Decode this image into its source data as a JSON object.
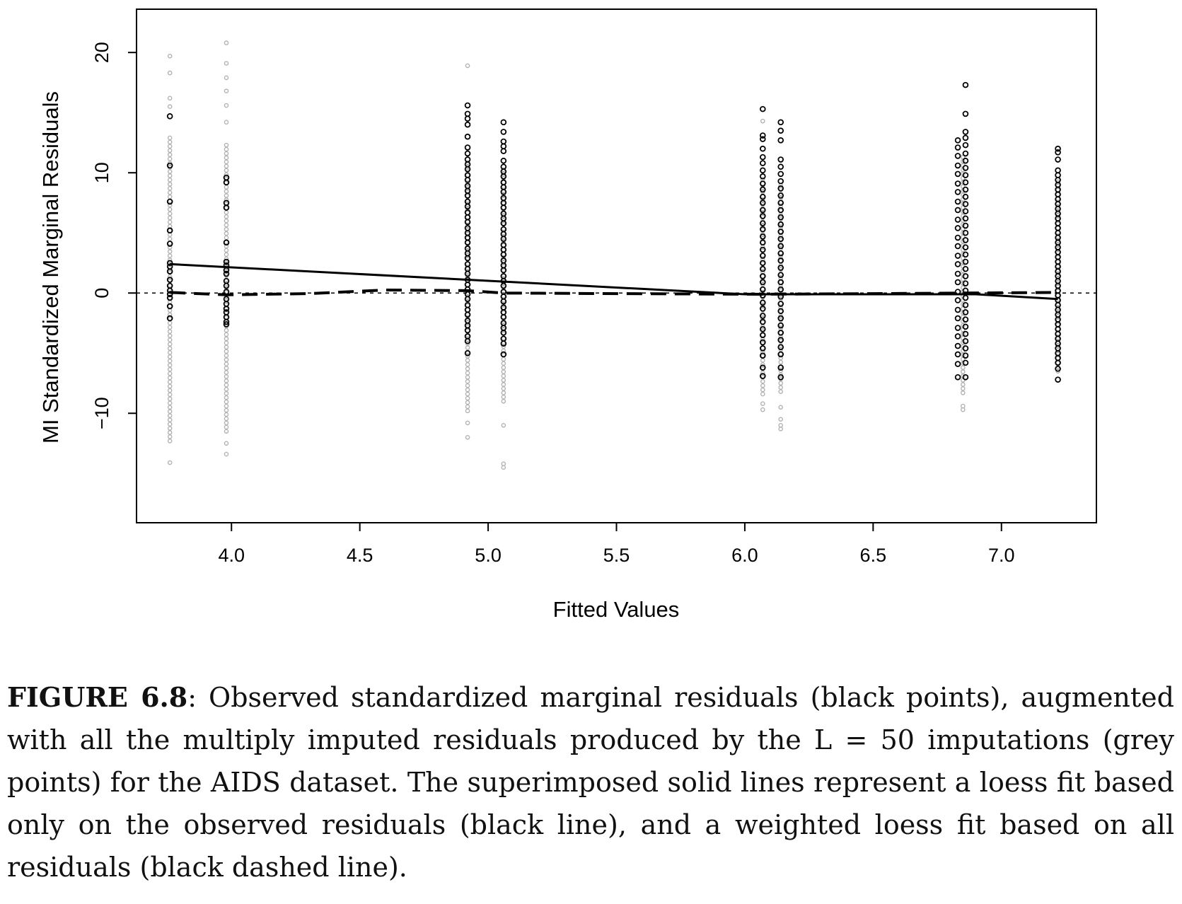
{
  "chart_data": {
    "type": "scatter",
    "xlabel": "Fitted Values",
    "ylabel": "MI Standardized Marginal Residuals",
    "xlim": [
      3.63,
      7.37
    ],
    "ylim": [
      -19.1,
      23.6
    ],
    "x_ticks": [
      "4.0",
      "4.5",
      "5.0",
      "5.5",
      "6.0",
      "6.5",
      "7.0"
    ],
    "x_tick_values": [
      4.0,
      4.5,
      5.0,
      5.5,
      6.0,
      6.5,
      7.0
    ],
    "y_ticks": [
      "−10",
      "0",
      "10",
      "20"
    ],
    "y_tick_values": [
      -10,
      0,
      10,
      20
    ],
    "reference_line": {
      "y": 0,
      "style": "dotted"
    },
    "observed_points": {
      "color": "#000000",
      "columns": [
        {
          "x": 3.76,
          "y": [
            14.7,
            10.6,
            7.6,
            5.2,
            4.1,
            2.5,
            2.2,
            1.8,
            1.1,
            0.6,
            0.2,
            -0.1,
            -0.4,
            -1.1,
            -2.1
          ]
        },
        {
          "x": 3.98,
          "y": [
            9.6,
            9.2,
            7.5,
            7.1,
            4.2,
            2.6,
            2.3,
            1.9,
            1.6,
            1.0,
            0.6,
            0.1,
            -0.5,
            -0.9,
            -1.3,
            -1.6,
            -2.0,
            -2.4,
            -2.6
          ]
        },
        {
          "x": 4.92,
          "y": [
            15.6,
            14.9,
            14.5,
            14.0,
            13.0,
            12.1,
            11.6,
            11.1,
            10.7,
            10.3,
            9.8,
            9.4,
            8.9,
            8.5,
            8.1,
            7.6,
            7.2,
            6.7,
            6.3,
            5.9,
            5.4,
            5.0,
            4.6,
            4.2,
            3.7,
            3.3,
            2.9,
            2.4,
            2.0,
            1.6,
            1.1,
            0.7,
            0.3,
            -0.1,
            -0.5,
            -1.0,
            -1.4,
            -1.8,
            -2.3,
            -2.7,
            -3.1,
            -3.6,
            -4.0,
            -5.0
          ]
        },
        {
          "x": 5.06,
          "y": [
            14.2,
            13.4,
            12.6,
            12.2,
            11.8,
            11.0,
            10.5,
            10.1,
            9.7,
            9.2,
            8.8,
            8.4,
            7.9,
            7.5,
            7.1,
            6.6,
            6.2,
            5.8,
            5.3,
            4.9,
            4.5,
            4.0,
            3.6,
            3.2,
            2.7,
            2.3,
            1.9,
            1.4,
            1.0,
            0.6,
            0.1,
            -0.3,
            -0.7,
            -1.2,
            -1.6,
            -2.0,
            -2.5,
            -2.9,
            -3.3,
            -3.8,
            -4.2,
            -5.1
          ]
        },
        {
          "x": 6.07,
          "y": [
            15.3,
            13.1,
            12.8,
            12.0,
            11.3,
            10.8,
            10.2,
            9.7,
            9.1,
            8.6,
            8.0,
            7.5,
            6.9,
            6.4,
            5.8,
            5.3,
            4.7,
            4.2,
            3.6,
            3.1,
            2.5,
            2.0,
            1.4,
            0.9,
            0.3,
            -0.2,
            -0.8,
            -1.3,
            -1.9,
            -2.4,
            -3.0,
            -3.5,
            -4.1,
            -4.6,
            -5.2,
            -6.2,
            -6.9
          ]
        },
        {
          "x": 6.14,
          "y": [
            14.2,
            13.5,
            12.7,
            11.1,
            10.5,
            9.9,
            9.3,
            8.7,
            8.1,
            7.5,
            6.9,
            6.3,
            5.7,
            5.1,
            4.5,
            3.9,
            3.3,
            2.7,
            2.1,
            1.5,
            0.9,
            0.3,
            -0.3,
            -0.9,
            -1.5,
            -2.1,
            -2.7,
            -3.3,
            -3.9,
            -4.5,
            -5.1,
            -6.2,
            -7.0
          ]
        },
        {
          "x": 6.83,
          "y": [
            12.7,
            12.1,
            11.4,
            10.6,
            9.9,
            9.1,
            8.4,
            7.6,
            6.9,
            6.1,
            5.4,
            4.6,
            3.9,
            3.1,
            2.4,
            1.6,
            0.9,
            0.1,
            -0.6,
            -1.4,
            -2.1,
            -2.9,
            -3.6,
            -4.4,
            -5.1,
            -5.9,
            -7.0
          ]
        },
        {
          "x": 6.86,
          "y": [
            17.3,
            14.9,
            13.4,
            12.9,
            12.3,
            11.6,
            11.0,
            10.4,
            9.8,
            9.2,
            8.6,
            8.0,
            7.4,
            6.8,
            6.2,
            5.6,
            5.0,
            4.4,
            3.8,
            3.2,
            2.6,
            2.0,
            1.4,
            0.8,
            0.2,
            -0.4,
            -1.0,
            -1.6,
            -2.2,
            -2.8,
            -3.4,
            -4.0,
            -4.6,
            -5.2,
            -5.8,
            -7.0
          ]
        },
        {
          "x": 7.22,
          "y": [
            12.0,
            11.7,
            11.1,
            10.2,
            9.8,
            9.4,
            9.0,
            8.6,
            8.2,
            7.8,
            7.4,
            7.0,
            6.6,
            6.2,
            5.8,
            5.4,
            5.0,
            4.6,
            4.2,
            3.8,
            3.4,
            3.0,
            2.6,
            2.2,
            1.8,
            1.4,
            1.0,
            0.6,
            0.2,
            -0.2,
            -0.6,
            -1.0,
            -1.4,
            -1.8,
            -2.2,
            -2.6,
            -3.0,
            -3.4,
            -3.8,
            -4.2,
            -4.6,
            -5.0,
            -5.4,
            -5.8,
            -6.3,
            -7.2
          ]
        }
      ]
    },
    "imputed_points": {
      "color": "#b3b3b3",
      "columns": [
        {
          "x": 3.76,
          "y_min": -12.3,
          "y_max": 13.0,
          "extra": [
            19.7,
            18.3,
            16.2,
            15.5,
            -14.1
          ]
        },
        {
          "x": 3.98,
          "y_min": -11.5,
          "y_max": 12.4,
          "extra": [
            20.8,
            19.1,
            17.9,
            16.8,
            15.6,
            14.2,
            -12.5,
            -13.4
          ]
        },
        {
          "x": 4.92,
          "y_min": -9.8,
          "y_max": 11.0,
          "extra": [
            18.9,
            -10.8,
            -12.0
          ]
        },
        {
          "x": 5.06,
          "y_min": -9.0,
          "y_max": 10.5,
          "extra": [
            -11.0,
            -14.2,
            -14.5
          ]
        },
        {
          "x": 6.07,
          "y_min": -8.4,
          "y_max": 9.5,
          "extra": [
            14.3,
            -9.2,
            -9.7
          ]
        },
        {
          "x": 6.14,
          "y_min": -8.2,
          "y_max": 9.0,
          "extra": [
            -9.5,
            -10.5,
            -11.0,
            -11.3
          ]
        },
        {
          "x": 6.85,
          "y_min": -8.3,
          "y_max": 11.5,
          "extra": [
            -9.4,
            -9.7
          ]
        },
        {
          "x": 7.22,
          "y_min": -6.5,
          "y_max": 9.5,
          "extra": []
        }
      ]
    },
    "lines": [
      {
        "name": "loess fit (observed residuals)",
        "style": "solid",
        "x": [
          3.76,
          6.0,
          6.9,
          7.22
        ],
        "y": [
          2.4,
          -0.1,
          -0.1,
          -0.5
        ]
      },
      {
        "name": "weighted loess fit (all residuals)",
        "style": "dashed",
        "x": [
          3.76,
          3.98,
          4.3,
          4.6,
          4.92,
          5.06,
          5.5,
          6.07,
          6.5,
          6.86,
          7.22
        ],
        "y": [
          0.05,
          -0.15,
          -0.05,
          0.25,
          0.2,
          0.0,
          -0.05,
          -0.1,
          -0.05,
          0.0,
          0.05
        ]
      }
    ]
  },
  "caption": {
    "label": "FIGURE 6.8",
    "text": ": Observed standardized marginal residuals (black points), augmented with all the multiply imputed residuals produced by the L = 50 imputations (grey points) for the AIDS dataset. The superimposed solid lines represent a loess fit based only on the observed residuals (black line), and a weighted loess fit based on all residuals (black dashed line)."
  }
}
